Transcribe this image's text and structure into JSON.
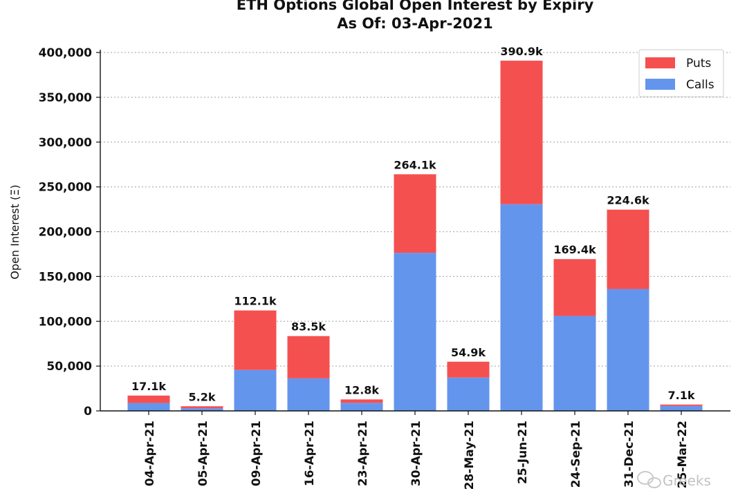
{
  "colors": {
    "puts": "#f55050",
    "calls": "#6495ed",
    "grid": "#b0b0b0"
  },
  "watermark": {
    "text": "Greeks",
    "icon": "wechat-icon"
  },
  "chart_data": {
    "type": "bar",
    "stacked": true,
    "title": "ETH Options Global Open Interest by Expiry",
    "subtitle": "As Of: 03-Apr-2021",
    "xlabel": "",
    "ylabel": "Open Interest (Ξ)",
    "ylim": [
      0,
      400000
    ],
    "yticks": [
      0,
      50000,
      100000,
      150000,
      200000,
      250000,
      300000,
      350000,
      400000
    ],
    "ytick_labels": [
      "0",
      "50,000",
      "100,000",
      "150,000",
      "200,000",
      "250,000",
      "300,000",
      "350,000",
      "400,000"
    ],
    "grid": "horizontal dotted",
    "legend": "top-right",
    "categories": [
      "04-Apr-21",
      "05-Apr-21",
      "09-Apr-21",
      "16-Apr-21",
      "23-Apr-21",
      "30-Apr-21",
      "28-May-21",
      "25-Jun-21",
      "24-Sep-21",
      "31-Dec-21",
      "25-Mar-22"
    ],
    "series": [
      {
        "name": "Calls",
        "values": [
          8800,
          3000,
          45700,
          36300,
          9000,
          176400,
          37200,
          230700,
          106000,
          136000,
          5500
        ]
      },
      {
        "name": "Puts",
        "values": [
          8300,
          2200,
          66400,
          47200,
          3800,
          87700,
          17700,
          160200,
          63400,
          88600,
          1600
        ]
      }
    ],
    "legend_order": [
      "Puts",
      "Calls"
    ],
    "totals_labels": [
      "17.1k",
      "5.2k",
      "112.1k",
      "83.5k",
      "12.8k",
      "264.1k",
      "54.9k",
      "390.9k",
      "169.4k",
      "224.6k",
      "7.1k"
    ]
  }
}
